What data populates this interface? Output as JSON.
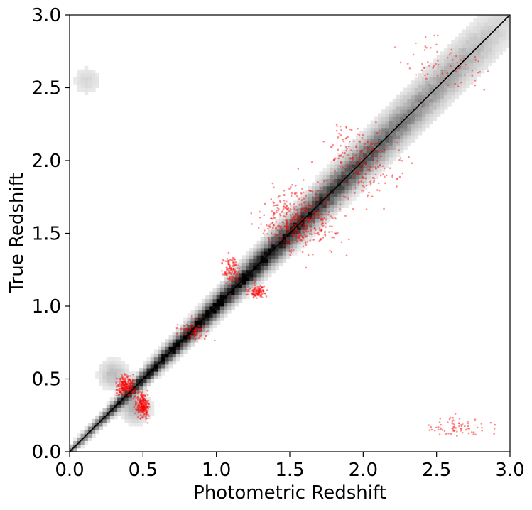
{
  "chart_data": {
    "type": "heatmap",
    "title": "",
    "xlabel": "Photometric Redshift",
    "ylabel": "True Redshift",
    "xlim": [
      0.0,
      3.0
    ],
    "ylim": [
      0.0,
      3.0
    ],
    "xticks": [
      "0.0",
      "0.5",
      "1.0",
      "1.5",
      "2.0",
      "2.5",
      "3.0"
    ],
    "yticks": [
      "0.0",
      "0.5",
      "1.0",
      "1.5",
      "2.0",
      "2.5",
      "3.0"
    ],
    "grid": false,
    "legend": "none",
    "colors": {
      "density": "#000000",
      "outliers": "#ff0000",
      "identity_line": "#000000"
    },
    "density_map": {
      "colormap": "Greys",
      "bin_width": 0.025,
      "ridge": [
        {
          "x": 0.05,
          "y": 0.05,
          "density": 0.55
        },
        {
          "x": 0.25,
          "y": 0.25,
          "density": 0.75
        },
        {
          "x": 0.5,
          "y": 0.5,
          "density": 0.95
        },
        {
          "x": 0.75,
          "y": 0.75,
          "density": 1.0
        },
        {
          "x": 1.0,
          "y": 1.0,
          "density": 1.0
        },
        {
          "x": 1.25,
          "y": 1.25,
          "density": 0.95
        },
        {
          "x": 1.5,
          "y": 1.5,
          "density": 0.9
        },
        {
          "x": 1.75,
          "y": 1.75,
          "density": 0.8
        },
        {
          "x": 2.0,
          "y": 2.0,
          "density": 0.65
        },
        {
          "x": 2.25,
          "y": 2.25,
          "density": 0.5
        },
        {
          "x": 2.5,
          "y": 2.5,
          "density": 0.35
        },
        {
          "x": 2.75,
          "y": 2.75,
          "density": 0.25
        },
        {
          "x": 2.95,
          "y": 2.95,
          "density": 0.12
        }
      ],
      "secondary_regions": [
        {
          "x": 0.12,
          "y": 2.55,
          "density": 0.12
        },
        {
          "x": 0.3,
          "y": 0.53,
          "density": 0.25
        },
        {
          "x": 0.45,
          "y": 0.3,
          "density": 0.3
        }
      ]
    },
    "outlier_clusters": [
      {
        "x": 0.38,
        "y": 0.45,
        "spread_x": 0.06,
        "spread_y": 0.06,
        "count": 220
      },
      {
        "x": 0.5,
        "y": 0.32,
        "spread_x": 0.04,
        "spread_y": 0.07,
        "count": 220
      },
      {
        "x": 0.85,
        "y": 0.82,
        "spread_x": 0.08,
        "spread_y": 0.07,
        "count": 80
      },
      {
        "x": 1.1,
        "y": 1.25,
        "spread_x": 0.05,
        "spread_y": 0.1,
        "count": 110
      },
      {
        "x": 1.28,
        "y": 1.1,
        "spread_x": 0.06,
        "spread_y": 0.04,
        "count": 110
      },
      {
        "x": 1.5,
        "y": 1.58,
        "spread_x": 0.18,
        "spread_y": 0.18,
        "count": 200
      },
      {
        "x": 1.65,
        "y": 1.6,
        "spread_x": 0.2,
        "spread_y": 0.22,
        "count": 200
      },
      {
        "x": 1.95,
        "y": 2.05,
        "spread_x": 0.2,
        "spread_y": 0.2,
        "count": 110
      },
      {
        "x": 2.1,
        "y": 1.95,
        "spread_x": 0.2,
        "spread_y": 0.2,
        "count": 90
      },
      {
        "x": 2.55,
        "y": 2.62,
        "spread_x": 0.25,
        "spread_y": 0.2,
        "count": 70
      },
      {
        "x": 2.65,
        "y": 0.17,
        "spread_x": 0.2,
        "spread_y": 0.06,
        "count": 70
      }
    ],
    "reference_line": {
      "x": [
        0.0,
        3.0
      ],
      "y": [
        0.0,
        3.0
      ]
    }
  }
}
